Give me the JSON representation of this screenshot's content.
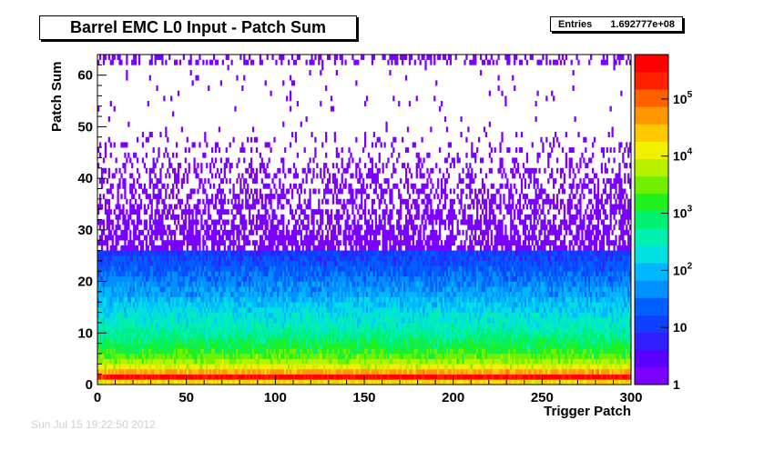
{
  "stats": {
    "label": "Entries",
    "value": "1.692777e+08"
  },
  "footer": {
    "stamp": "Sun Jul 15 19:22:50 2012"
  },
  "chart_data": {
    "type": "heatmap",
    "title": "Barrel EMC L0 Input - Patch Sum",
    "xlabel": "Trigger Patch",
    "ylabel": "Patch Sum",
    "xlim": [
      0,
      300
    ],
    "ylim": [
      0,
      64
    ],
    "x_ticks": [
      0,
      50,
      100,
      150,
      200,
      250,
      300
    ],
    "y_ticks": [
      0,
      10,
      20,
      30,
      40,
      50,
      60
    ],
    "z_scale": "log",
    "zlim": [
      1,
      600000
    ],
    "z_ticks": [
      {
        "value": 1,
        "label": "1"
      },
      {
        "value": 10,
        "label": "10"
      },
      {
        "value": 100,
        "label": "10^2"
      },
      {
        "value": 1000,
        "label": "10^3"
      },
      {
        "value": 10000,
        "label": "10^4"
      },
      {
        "value": 100000,
        "label": "10^5"
      }
    ],
    "description_profile": [
      {
        "y": 0.5,
        "count": 20000
      },
      {
        "y": 1.5,
        "count": 400000
      },
      {
        "y": 3,
        "count": 15000
      },
      {
        "y": 6,
        "count": 2000
      },
      {
        "y": 10,
        "count": 500
      },
      {
        "y": 15,
        "count": 150
      },
      {
        "y": 20,
        "count": 40
      },
      {
        "y": 25,
        "count": 12
      },
      {
        "y": 30,
        "count": 4
      },
      {
        "y": 35,
        "count": 2
      },
      {
        "y": 40,
        "count": 1
      },
      {
        "y": 63,
        "count": 1
      }
    ],
    "grid": false,
    "legend": "colorbar-right"
  }
}
